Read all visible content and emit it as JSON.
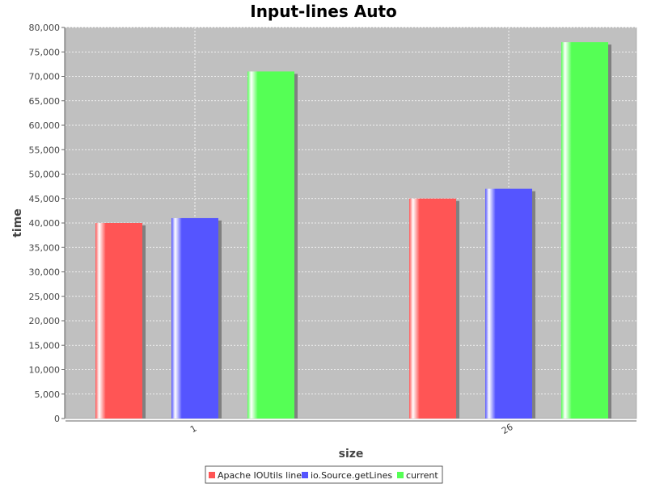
{
  "chart_data": {
    "type": "bar",
    "title": "Input-lines Auto",
    "xlabel": "size",
    "ylabel": "time",
    "categories": [
      "1",
      "26"
    ],
    "ylim": [
      0,
      80000
    ],
    "ytick_step": 5000,
    "grid": true,
    "legend_position": "bottom",
    "series": [
      {
        "name": "Apache IOUtils line",
        "color": "#ff5555",
        "values": [
          40000,
          45000
        ]
      },
      {
        "name": "io.Source.getLines",
        "color": "#5555ff",
        "values": [
          41000,
          47000
        ]
      },
      {
        "name": "current",
        "color": "#55ff55",
        "values": [
          71000,
          77000
        ]
      }
    ]
  }
}
